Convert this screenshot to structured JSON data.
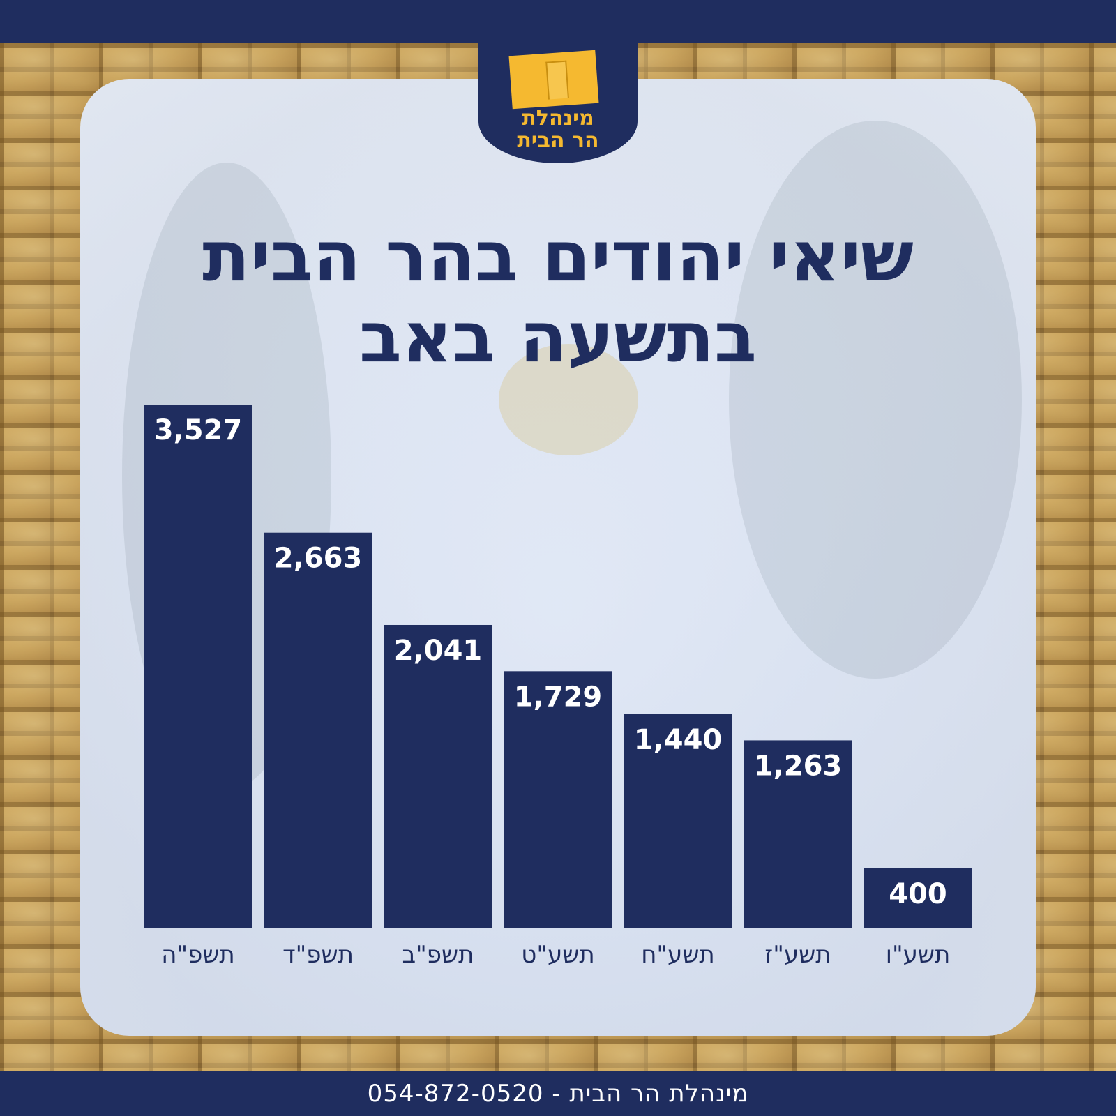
{
  "logo": {
    "line1": "מינהלת",
    "line2": "הר הבית"
  },
  "title": {
    "line1": "שיאי יהודים בהר הבית",
    "line2": "בתשעה באב"
  },
  "footer": {
    "text": "מינהלת הר הבית - 054-872-0520"
  },
  "colors": {
    "navy": "#1f2d5f",
    "gold": "#f5b930"
  },
  "chart_data": {
    "type": "bar",
    "categories": [
      "תשפ\"ה",
      "תשפ\"ד",
      "תשפ\"ב",
      "תשע\"ט",
      "תשע\"ח",
      "תשע\"ז",
      "תשע\"ו"
    ],
    "values": [
      3527,
      2663,
      2041,
      1729,
      1440,
      1263,
      400
    ],
    "value_labels": [
      "3,527",
      "2,663",
      "2,041",
      "1,729",
      "1,440",
      "1,263",
      "400"
    ],
    "title": "שיאי יהודים בהר הבית בתשעה באב",
    "xlabel": "",
    "ylabel": "",
    "ylim": [
      0,
      3527
    ],
    "grid": false,
    "legend": "none"
  }
}
